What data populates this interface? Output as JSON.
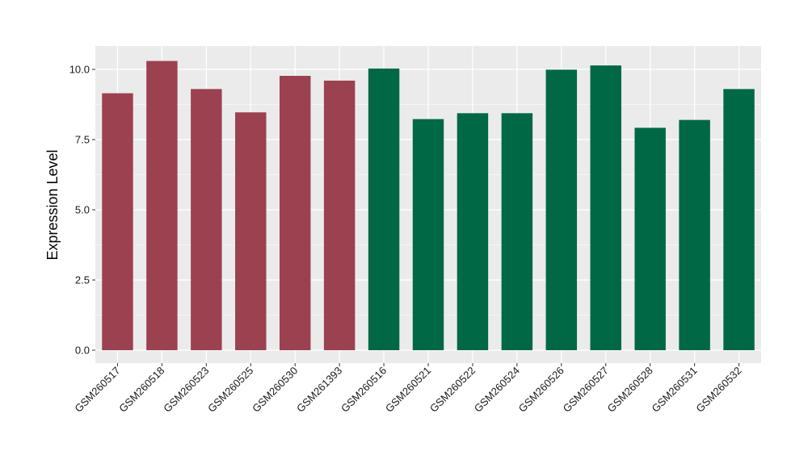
{
  "chart_data": {
    "type": "bar",
    "title": "",
    "xlabel": "",
    "ylabel": "Expression Level",
    "ylim": [
      0,
      10.75
    ],
    "y_ticks": [
      0,
      2.5,
      5,
      7.5,
      10
    ],
    "y_tick_labels": [
      "0.0",
      "2.5",
      "5.0",
      "7.5",
      "10.0"
    ],
    "grid": true,
    "legend": "none",
    "categories": [
      "GSM260517",
      "GSM260518",
      "GSM260523",
      "GSM260525",
      "GSM260530",
      "GSM261393",
      "GSM260516",
      "GSM260521",
      "GSM260522",
      "GSM260524",
      "GSM260526",
      "GSM260527",
      "GSM260528",
      "GSM260531",
      "GSM260532"
    ],
    "values": [
      9.15,
      10.3,
      9.3,
      8.47,
      9.77,
      9.6,
      10.03,
      8.23,
      8.44,
      8.44,
      9.99,
      10.14,
      7.92,
      8.2,
      9.3
    ],
    "bar_colors": [
      "#9b4150",
      "#9b4150",
      "#9b4150",
      "#9b4150",
      "#9b4150",
      "#9b4150",
      "#006845",
      "#006845",
      "#006845",
      "#006845",
      "#006845",
      "#006845",
      "#006845",
      "#006845",
      "#006845"
    ],
    "panel_background": "#ebebeb",
    "grid_color": "#ffffff"
  }
}
